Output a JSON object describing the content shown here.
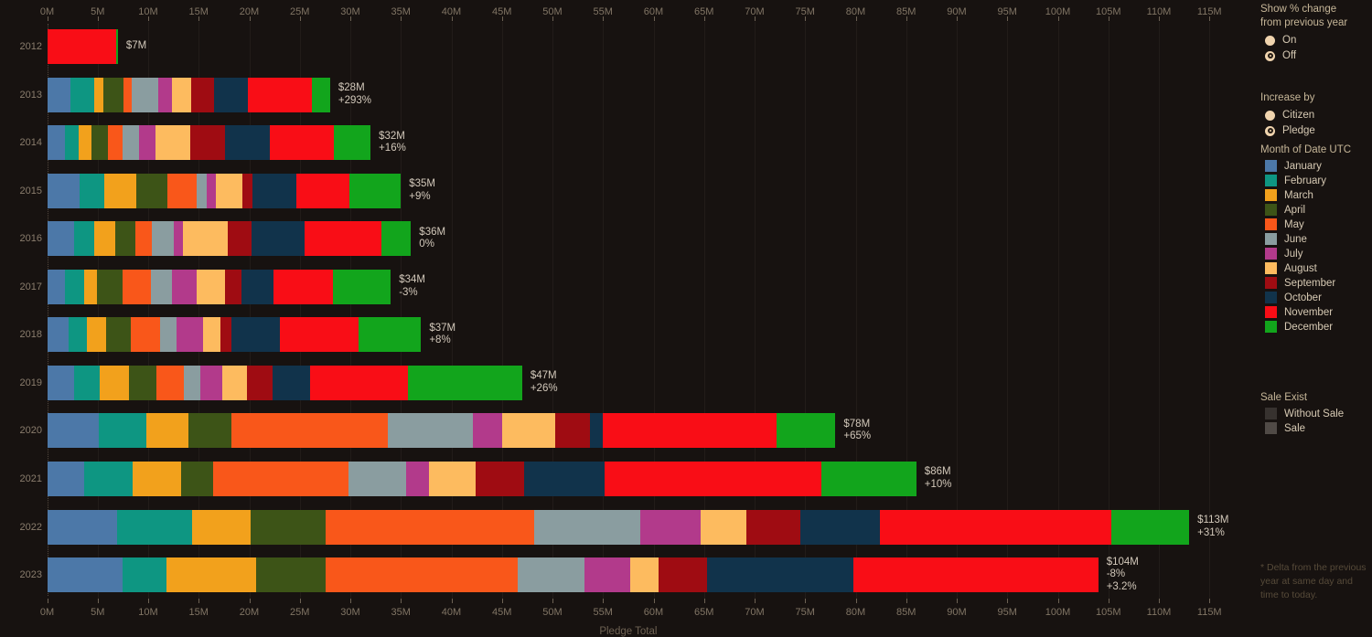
{
  "chart_data": {
    "type": "bar",
    "orientation": "horizontal",
    "stacked": true,
    "unit": "millions USD",
    "axis": {
      "title": "Pledge Total",
      "max_m": 115,
      "tick_step_m": 5,
      "ticks": [
        "0M",
        "5M",
        "10M",
        "15M",
        "20M",
        "25M",
        "30M",
        "35M",
        "40M",
        "45M",
        "50M",
        "55M",
        "60M",
        "65M",
        "70M",
        "75M",
        "80M",
        "85M",
        "90M",
        "95M",
        "100M",
        "105M",
        "110M",
        "115M"
      ],
      "grid": true
    },
    "months": [
      {
        "name": "January",
        "color": "#4c78a8"
      },
      {
        "name": "February",
        "color": "#0e9682"
      },
      {
        "name": "March",
        "color": "#f2a11c"
      },
      {
        "name": "April",
        "color": "#3d5417"
      },
      {
        "name": "May",
        "color": "#f9571a"
      },
      {
        "name": "June",
        "color": "#8a9da0"
      },
      {
        "name": "July",
        "color": "#b23a8b"
      },
      {
        "name": "August",
        "color": "#fdbb5f"
      },
      {
        "name": "September",
        "color": "#9f0c12"
      },
      {
        "name": "October",
        "color": "#11334b"
      },
      {
        "name": "November",
        "color": "#f90d16"
      },
      {
        "name": "December",
        "color": "#12a51c"
      }
    ],
    "years": [
      {
        "year": "2012",
        "total_label": "$7M",
        "delta_labels": [],
        "values": [
          0,
          0,
          0,
          0,
          0,
          0,
          0,
          0,
          0,
          0,
          6.8,
          0.2
        ]
      },
      {
        "year": "2013",
        "total_label": "$28M",
        "delta_labels": [
          "+293%"
        ],
        "values": [
          2.3,
          2.4,
          0.9,
          2.0,
          0.8,
          2.6,
          1.4,
          1.9,
          2.2,
          3.4,
          6.3,
          1.8
        ]
      },
      {
        "year": "2014",
        "total_label": "$32M",
        "delta_labels": [
          "+16%"
        ],
        "values": [
          1.8,
          1.3,
          1.3,
          1.6,
          1.5,
          1.6,
          1.6,
          3.5,
          3.4,
          4.4,
          6.4,
          3.6
        ]
      },
      {
        "year": "2015",
        "total_label": "$35M",
        "delta_labels": [
          "+9%"
        ],
        "values": [
          3.2,
          2.5,
          3.1,
          3.1,
          2.9,
          1.0,
          0.9,
          2.6,
          1.0,
          4.4,
          5.2,
          5.1
        ]
      },
      {
        "year": "2016",
        "total_label": "$36M",
        "delta_labels": [
          "0%"
        ],
        "values": [
          2.7,
          2.0,
          2.0,
          2.0,
          1.7,
          2.1,
          0.9,
          4.5,
          2.3,
          5.3,
          7.6,
          2.9
        ]
      },
      {
        "year": "2017",
        "total_label": "$34M",
        "delta_labels": [
          "-3%"
        ],
        "values": [
          1.8,
          1.9,
          1.2,
          2.6,
          2.8,
          2.1,
          2.4,
          2.8,
          1.6,
          3.2,
          5.9,
          5.7
        ]
      },
      {
        "year": "2018",
        "total_label": "$37M",
        "delta_labels": [
          "+8%"
        ],
        "values": [
          2.1,
          1.8,
          1.9,
          2.5,
          2.9,
          1.6,
          2.6,
          1.8,
          1.0,
          4.8,
          7.8,
          6.2
        ]
      },
      {
        "year": "2019",
        "total_label": "$47M",
        "delta_labels": [
          "+26%"
        ],
        "values": [
          2.7,
          2.5,
          2.9,
          2.7,
          2.7,
          1.7,
          2.1,
          2.5,
          2.5,
          3.7,
          9.7,
          11.3
        ]
      },
      {
        "year": "2020",
        "total_label": "$78M",
        "delta_labels": [
          "+65%"
        ],
        "values": [
          5.1,
          4.7,
          4.2,
          4.2,
          15.5,
          8.4,
          2.9,
          5.3,
          3.4,
          1.3,
          17.2,
          5.8
        ]
      },
      {
        "year": "2021",
        "total_label": "$86M",
        "delta_labels": [
          "+10%"
        ],
        "values": [
          3.7,
          4.8,
          4.8,
          3.1,
          13.4,
          5.7,
          2.3,
          4.6,
          4.8,
          8.0,
          21.4,
          9.4
        ]
      },
      {
        "year": "2022",
        "total_label": "$113M",
        "delta_labels": [
          "+31%"
        ],
        "values": [
          6.9,
          7.4,
          5.8,
          7.5,
          20.6,
          10.5,
          6.0,
          4.5,
          5.3,
          7.9,
          22.9,
          7.7
        ]
      },
      {
        "year": "2023",
        "total_label": "$104M",
        "delta_labels": [
          "-8%",
          "+3.2%"
        ],
        "values": [
          7.5,
          4.3,
          8.9,
          6.9,
          19.0,
          6.6,
          4.5,
          2.8,
          4.8,
          14.5,
          24.2,
          0
        ]
      }
    ]
  },
  "legend": {
    "show_pct": {
      "title_line1": "Show % change",
      "title_line2": "from previous year",
      "options": [
        {
          "label": "On",
          "selected": false
        },
        {
          "label": "Off",
          "selected": true
        }
      ]
    },
    "increase_by": {
      "title": "Increase by",
      "options": [
        {
          "label": "Citizen",
          "selected": false
        },
        {
          "label": "Pledge",
          "selected": true
        }
      ]
    },
    "months_title": "Month of Date UTC",
    "sale_exist": {
      "title": "Sale Exist",
      "items": [
        {
          "label": "Without Sale",
          "color": "#37322f"
        },
        {
          "label": "Sale",
          "color": "#504a46"
        }
      ]
    },
    "footnote_lines": [
      "* Delta from the previous",
      "year at same day and",
      "time to today."
    ]
  }
}
